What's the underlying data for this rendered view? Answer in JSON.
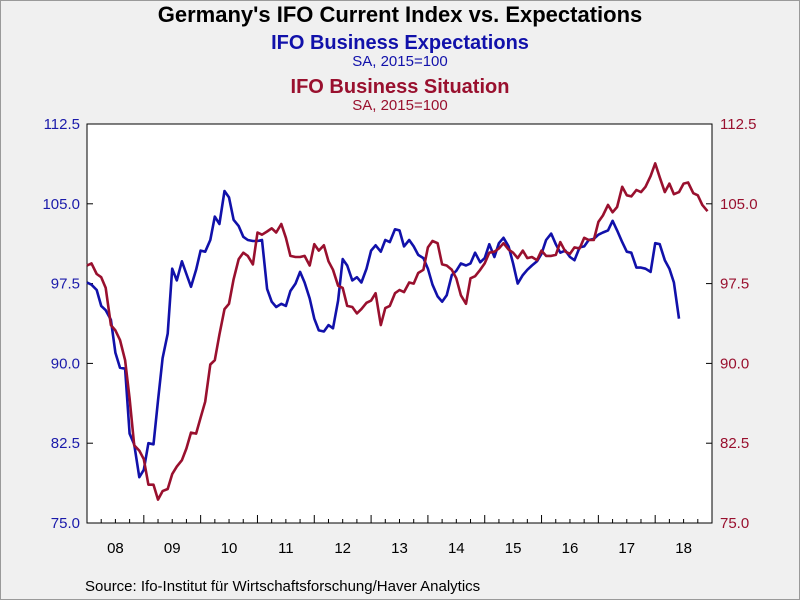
{
  "title": "Germany's IFO Current Index vs. Expectations",
  "source": "Source:  Ifo-Institut für Wirtschaftsforschung/Haver Analytics",
  "chart_data": {
    "type": "line",
    "title": "Germany's IFO Current Index vs. Expectations",
    "grid": false,
    "y_left": {
      "lim": [
        75.0,
        112.5
      ],
      "ticks": [
        "75.0",
        "82.5",
        "90.0",
        "97.5",
        "105.0",
        "112.5"
      ],
      "color": "#1a1aaa"
    },
    "y_right": {
      "lim": [
        75.0,
        112.5
      ],
      "ticks": [
        "75.0",
        "82.5",
        "90.0",
        "97.5",
        "105.0",
        "112.5"
      ],
      "color": "#99102e"
    },
    "x": {
      "lim": [
        2008.0,
        2019.0
      ],
      "tick_labels": [
        "08",
        "09",
        "10",
        "11",
        "12",
        "13",
        "14",
        "15",
        "16",
        "17",
        "18"
      ]
    },
    "series": [
      {
        "name": "IFO Business Expectations",
        "unit": "SA, 2015=100",
        "axis": "left",
        "color": "#1111aa",
        "points": [
          [
            2008.0,
            97.6
          ],
          [
            2008.08,
            97.4
          ],
          [
            2008.17,
            96.9
          ],
          [
            2008.25,
            95.4
          ],
          [
            2008.33,
            95.0
          ],
          [
            2008.42,
            94.1
          ],
          [
            2008.5,
            91.0
          ],
          [
            2008.58,
            89.6
          ],
          [
            2008.67,
            89.5
          ],
          [
            2008.75,
            83.4
          ],
          [
            2008.83,
            82.4
          ],
          [
            2008.92,
            79.3
          ],
          [
            2009.0,
            80.0
          ],
          [
            2009.08,
            82.5
          ],
          [
            2009.17,
            82.4
          ],
          [
            2009.25,
            86.5
          ],
          [
            2009.33,
            90.5
          ],
          [
            2009.42,
            92.8
          ],
          [
            2009.5,
            98.9
          ],
          [
            2009.58,
            97.8
          ],
          [
            2009.67,
            99.6
          ],
          [
            2009.75,
            98.4
          ],
          [
            2009.83,
            97.2
          ],
          [
            2009.92,
            98.8
          ],
          [
            2010.0,
            100.6
          ],
          [
            2010.08,
            100.5
          ],
          [
            2010.17,
            101.6
          ],
          [
            2010.25,
            103.8
          ],
          [
            2010.33,
            103.1
          ],
          [
            2010.42,
            106.2
          ],
          [
            2010.5,
            105.6
          ],
          [
            2010.58,
            103.5
          ],
          [
            2010.67,
            102.9
          ],
          [
            2010.75,
            101.9
          ],
          [
            2010.83,
            101.6
          ],
          [
            2010.92,
            101.5
          ],
          [
            2011.0,
            101.5
          ],
          [
            2011.08,
            101.6
          ],
          [
            2011.17,
            97.0
          ],
          [
            2011.25,
            95.8
          ],
          [
            2011.33,
            95.3
          ],
          [
            2011.42,
            95.6
          ],
          [
            2011.5,
            95.4
          ],
          [
            2011.58,
            96.8
          ],
          [
            2011.67,
            97.5
          ],
          [
            2011.75,
            98.6
          ],
          [
            2011.83,
            97.6
          ],
          [
            2011.92,
            96.1
          ],
          [
            2012.0,
            94.2
          ],
          [
            2012.08,
            93.1
          ],
          [
            2012.17,
            93.0
          ],
          [
            2012.25,
            93.6
          ],
          [
            2012.33,
            93.3
          ],
          [
            2012.42,
            95.9
          ],
          [
            2012.5,
            99.8
          ],
          [
            2012.58,
            99.2
          ],
          [
            2012.67,
            97.8
          ],
          [
            2012.75,
            98.1
          ],
          [
            2012.83,
            97.6
          ],
          [
            2012.92,
            98.9
          ],
          [
            2013.0,
            100.6
          ],
          [
            2013.08,
            101.1
          ],
          [
            2013.17,
            100.5
          ],
          [
            2013.25,
            101.6
          ],
          [
            2013.33,
            101.4
          ],
          [
            2013.42,
            102.6
          ],
          [
            2013.5,
            102.5
          ],
          [
            2013.58,
            101.0
          ],
          [
            2013.67,
            101.6
          ],
          [
            2013.75,
            101.0
          ],
          [
            2013.83,
            100.2
          ],
          [
            2013.92,
            99.9
          ],
          [
            2014.0,
            98.9
          ],
          [
            2014.08,
            97.4
          ],
          [
            2014.17,
            96.3
          ],
          [
            2014.25,
            95.8
          ],
          [
            2014.33,
            96.4
          ],
          [
            2014.42,
            98.3
          ],
          [
            2014.5,
            98.7
          ],
          [
            2014.58,
            99.4
          ],
          [
            2014.67,
            99.2
          ],
          [
            2014.75,
            99.4
          ],
          [
            2014.83,
            100.4
          ],
          [
            2014.92,
            99.5
          ],
          [
            2015.0,
            99.9
          ],
          [
            2015.08,
            101.2
          ],
          [
            2015.17,
            100.0
          ],
          [
            2015.25,
            101.3
          ],
          [
            2015.33,
            101.8
          ],
          [
            2015.42,
            101.0
          ],
          [
            2015.5,
            99.4
          ],
          [
            2015.58,
            97.5
          ],
          [
            2015.67,
            98.3
          ],
          [
            2015.75,
            98.8
          ],
          [
            2015.83,
            99.2
          ],
          [
            2015.92,
            99.6
          ],
          [
            2016.0,
            100.3
          ],
          [
            2016.08,
            101.6
          ],
          [
            2016.17,
            102.2
          ],
          [
            2016.25,
            101.2
          ],
          [
            2016.33,
            100.4
          ],
          [
            2016.42,
            100.6
          ],
          [
            2016.5,
            100.0
          ],
          [
            2016.58,
            99.7
          ],
          [
            2016.67,
            100.9
          ],
          [
            2016.75,
            101.0
          ],
          [
            2016.83,
            101.6
          ],
          [
            2016.92,
            101.7
          ],
          [
            2017.0,
            102.1
          ],
          [
            2017.08,
            102.3
          ],
          [
            2017.17,
            102.5
          ],
          [
            2017.25,
            103.4
          ],
          [
            2017.33,
            102.5
          ],
          [
            2017.42,
            101.4
          ],
          [
            2017.5,
            100.5
          ],
          [
            2017.58,
            100.4
          ],
          [
            2017.67,
            99.0
          ],
          [
            2017.75,
            99.0
          ],
          [
            2017.83,
            98.9
          ],
          [
            2017.92,
            98.6
          ],
          [
            2018.0,
            101.3
          ],
          [
            2018.08,
            101.2
          ],
          [
            2018.17,
            99.7
          ],
          [
            2018.25,
            98.9
          ],
          [
            2018.33,
            97.6
          ],
          [
            2018.42,
            94.2
          ]
        ]
      },
      {
        "name": "IFO Business Situation",
        "unit": "SA, 2015=100",
        "axis": "right",
        "color": "#99102e",
        "points": [
          [
            2008.0,
            99.2
          ],
          [
            2008.08,
            99.4
          ],
          [
            2008.17,
            98.4
          ],
          [
            2008.25,
            98.1
          ],
          [
            2008.33,
            97.1
          ],
          [
            2008.42,
            93.6
          ],
          [
            2008.5,
            93.1
          ],
          [
            2008.58,
            92.2
          ],
          [
            2008.67,
            90.3
          ],
          [
            2008.75,
            86.7
          ],
          [
            2008.83,
            82.3
          ],
          [
            2008.92,
            81.8
          ],
          [
            2009.0,
            81.0
          ],
          [
            2009.08,
            78.6
          ],
          [
            2009.17,
            78.6
          ],
          [
            2009.25,
            77.2
          ],
          [
            2009.33,
            78.0
          ],
          [
            2009.42,
            78.2
          ],
          [
            2009.5,
            79.6
          ],
          [
            2009.58,
            80.3
          ],
          [
            2009.67,
            80.9
          ],
          [
            2009.75,
            82.0
          ],
          [
            2009.83,
            83.5
          ],
          [
            2009.92,
            83.4
          ],
          [
            2010.0,
            84.9
          ],
          [
            2010.08,
            86.4
          ],
          [
            2010.17,
            89.9
          ],
          [
            2010.25,
            90.3
          ],
          [
            2010.33,
            92.7
          ],
          [
            2010.42,
            95.1
          ],
          [
            2010.5,
            95.6
          ],
          [
            2010.58,
            97.9
          ],
          [
            2010.67,
            99.8
          ],
          [
            2010.75,
            100.4
          ],
          [
            2010.83,
            100.1
          ],
          [
            2010.92,
            99.3
          ],
          [
            2011.0,
            102.3
          ],
          [
            2011.08,
            102.1
          ],
          [
            2011.17,
            102.4
          ],
          [
            2011.25,
            102.7
          ],
          [
            2011.33,
            102.3
          ],
          [
            2011.42,
            103.1
          ],
          [
            2011.5,
            101.8
          ],
          [
            2011.58,
            100.1
          ],
          [
            2011.67,
            100.0
          ],
          [
            2011.75,
            100.0
          ],
          [
            2011.83,
            100.1
          ],
          [
            2011.92,
            99.2
          ],
          [
            2012.0,
            101.2
          ],
          [
            2012.08,
            100.6
          ],
          [
            2012.17,
            101.1
          ],
          [
            2012.25,
            99.6
          ],
          [
            2012.33,
            98.8
          ],
          [
            2012.42,
            97.3
          ],
          [
            2012.5,
            97.1
          ],
          [
            2012.58,
            95.4
          ],
          [
            2012.67,
            95.3
          ],
          [
            2012.75,
            94.7
          ],
          [
            2012.83,
            95.1
          ],
          [
            2012.92,
            95.7
          ],
          [
            2013.0,
            95.9
          ],
          [
            2013.08,
            96.6
          ],
          [
            2013.17,
            93.6
          ],
          [
            2013.25,
            95.2
          ],
          [
            2013.33,
            95.4
          ],
          [
            2013.42,
            96.6
          ],
          [
            2013.5,
            96.9
          ],
          [
            2013.58,
            96.7
          ],
          [
            2013.67,
            97.6
          ],
          [
            2013.75,
            97.5
          ],
          [
            2013.83,
            98.5
          ],
          [
            2013.92,
            98.8
          ],
          [
            2014.0,
            100.9
          ],
          [
            2014.08,
            101.5
          ],
          [
            2014.17,
            101.3
          ],
          [
            2014.25,
            99.3
          ],
          [
            2014.33,
            99.2
          ],
          [
            2014.42,
            98.8
          ],
          [
            2014.5,
            98.0
          ],
          [
            2014.58,
            96.4
          ],
          [
            2014.67,
            95.6
          ],
          [
            2014.75,
            98.0
          ],
          [
            2014.83,
            98.2
          ],
          [
            2014.92,
            98.8
          ],
          [
            2015.0,
            99.4
          ],
          [
            2015.08,
            100.4
          ],
          [
            2015.17,
            100.5
          ],
          [
            2015.25,
            100.8
          ],
          [
            2015.33,
            101.3
          ],
          [
            2015.42,
            100.7
          ],
          [
            2015.5,
            100.4
          ],
          [
            2015.58,
            99.9
          ],
          [
            2015.67,
            100.6
          ],
          [
            2015.75,
            99.9
          ],
          [
            2015.83,
            100.0
          ],
          [
            2015.92,
            99.7
          ],
          [
            2016.0,
            100.6
          ],
          [
            2016.08,
            100.1
          ],
          [
            2016.17,
            100.1
          ],
          [
            2016.25,
            100.2
          ],
          [
            2016.33,
            101.4
          ],
          [
            2016.42,
            100.5
          ],
          [
            2016.5,
            100.3
          ],
          [
            2016.58,
            100.9
          ],
          [
            2016.67,
            100.8
          ],
          [
            2016.75,
            101.8
          ],
          [
            2016.83,
            101.6
          ],
          [
            2016.92,
            101.6
          ],
          [
            2017.0,
            103.3
          ],
          [
            2017.08,
            103.9
          ],
          [
            2017.17,
            104.9
          ],
          [
            2017.25,
            104.2
          ],
          [
            2017.33,
            104.7
          ],
          [
            2017.42,
            106.6
          ],
          [
            2017.5,
            105.8
          ],
          [
            2017.58,
            105.7
          ],
          [
            2017.67,
            106.3
          ],
          [
            2017.75,
            106.1
          ],
          [
            2017.83,
            106.6
          ],
          [
            2017.92,
            107.6
          ],
          [
            2018.0,
            108.8
          ],
          [
            2018.08,
            107.5
          ],
          [
            2018.17,
            106.1
          ],
          [
            2018.25,
            106.9
          ],
          [
            2018.33,
            105.9
          ],
          [
            2018.42,
            106.1
          ],
          [
            2018.5,
            106.9
          ],
          [
            2018.58,
            107.0
          ],
          [
            2018.67,
            106.0
          ],
          [
            2018.75,
            105.8
          ],
          [
            2018.83,
            104.9
          ],
          [
            2018.92,
            104.3
          ]
        ]
      }
    ]
  }
}
